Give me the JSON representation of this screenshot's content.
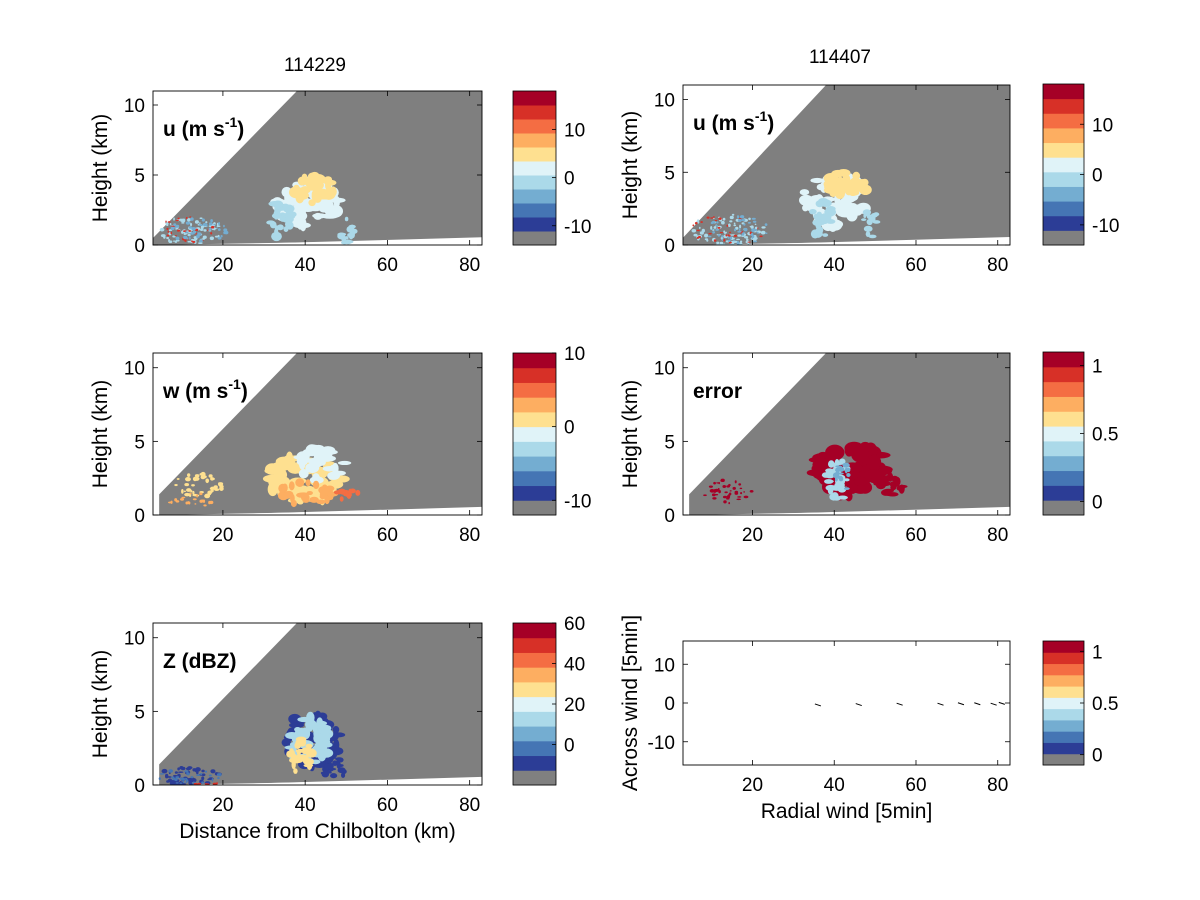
{
  "figure": {
    "col_titles": [
      "114229",
      "114407"
    ],
    "height_label": "Height (km)",
    "xlabel_bottom_left": "Distance from Chilbolton (km)"
  },
  "colors": {
    "bg_gray": "#7f7f7f",
    "palette": [
      "#808080",
      "#2c3d96",
      "#4575b4",
      "#74add1",
      "#abd9e9",
      "#e0f3f8",
      "#fee090",
      "#fdae61",
      "#f46d43",
      "#d73027",
      "#a50026"
    ]
  },
  "chart_data": [
    {
      "id": "u-114229",
      "type": "heatmap",
      "column_title": "114229",
      "annotation_base": "u (m s",
      "annotation_sup": "-1",
      "annotation_tail": ")",
      "ylabel": "Height (km)",
      "xlabel": "",
      "xlim": [
        3,
        83
      ],
      "ylim": [
        0,
        11
      ],
      "xticks": [
        20,
        40,
        60,
        80
      ],
      "yticks": [
        0,
        5,
        10
      ],
      "colorbar": {
        "ticks": [
          -10,
          0,
          10
        ],
        "labels": [
          "-10",
          "0",
          "10"
        ],
        "range": [
          -14,
          18
        ]
      }
    },
    {
      "id": "u-114407",
      "type": "heatmap",
      "column_title": "114407",
      "annotation_base": "u (m s",
      "annotation_sup": "-1",
      "annotation_tail": ")",
      "ylabel": "Height (km)",
      "xlabel": "",
      "xlim": [
        3,
        83
      ],
      "ylim": [
        0,
        11
      ],
      "xticks": [
        20,
        40,
        60,
        80
      ],
      "yticks": [
        0,
        5,
        10
      ],
      "colorbar": {
        "ticks": [
          -10,
          0,
          10
        ],
        "labels": [
          "-10",
          "0",
          "10"
        ],
        "range": [
          -14,
          18
        ]
      }
    },
    {
      "id": "w-114229",
      "type": "heatmap",
      "annotation_base": "w (m s",
      "annotation_sup": "-1",
      "annotation_tail": ")",
      "ylabel": "Height (km)",
      "xlabel": "",
      "xlim": [
        3,
        83
      ],
      "ylim": [
        0,
        11
      ],
      "xticks": [
        20,
        40,
        60,
        80
      ],
      "yticks": [
        0,
        5,
        10
      ],
      "colorbar": {
        "ticks": [
          -10,
          0,
          10
        ],
        "labels": [
          "-10",
          "0",
          "10"
        ],
        "range": [
          -12,
          10
        ]
      }
    },
    {
      "id": "error-114407",
      "type": "heatmap",
      "annotation_base": "error",
      "annotation_sup": "",
      "annotation_tail": "",
      "ylabel": "Height (km)",
      "xlabel": "",
      "xlim": [
        3,
        83
      ],
      "ylim": [
        0,
        11
      ],
      "xticks": [
        20,
        40,
        60,
        80
      ],
      "yticks": [
        0,
        5,
        10
      ],
      "colorbar": {
        "ticks": [
          0,
          0.5,
          1
        ],
        "labels": [
          "0",
          "0.5",
          "1"
        ],
        "range": [
          -0.1,
          1.1
        ]
      }
    },
    {
      "id": "Z-114229",
      "type": "heatmap",
      "annotation_base": "Z (dBZ)",
      "annotation_sup": "",
      "annotation_tail": "",
      "ylabel": "Height (km)",
      "xlabel": "Distance from Chilbolton (km)",
      "xlim": [
        3,
        83
      ],
      "ylim": [
        0,
        11
      ],
      "xticks": [
        20,
        40,
        60,
        80
      ],
      "yticks": [
        0,
        5,
        10
      ],
      "colorbar": {
        "ticks": [
          0,
          20,
          40,
          60
        ],
        "labels": [
          "0",
          "20",
          "40",
          "60"
        ],
        "range": [
          -20,
          60
        ]
      }
    },
    {
      "id": "wind-114407",
      "type": "scatter",
      "annotation_base": "",
      "annotation_sup": "",
      "annotation_tail": "",
      "ylabel": "Across wind [5min]",
      "xlabel": "Radial wind [5min]",
      "xlim": [
        3,
        83
      ],
      "ylim": [
        -16,
        16
      ],
      "xticks": [
        20,
        40,
        60,
        80
      ],
      "yticks": [
        -10,
        0,
        10
      ],
      "points": [
        {
          "x": 36,
          "y": -0.5
        },
        {
          "x": 46,
          "y": -0.4
        },
        {
          "x": 56,
          "y": -0.3
        },
        {
          "x": 66,
          "y": -0.3
        },
        {
          "x": 71,
          "y": -0.2
        },
        {
          "x": 75,
          "y": -0.2
        },
        {
          "x": 79,
          "y": -0.3
        },
        {
          "x": 81,
          "y": -0.1
        }
      ],
      "colorbar": {
        "ticks": [
          0,
          0.5,
          1
        ],
        "labels": [
          "0",
          "0.5",
          "1"
        ],
        "range": [
          -0.1,
          1.1
        ]
      }
    }
  ]
}
